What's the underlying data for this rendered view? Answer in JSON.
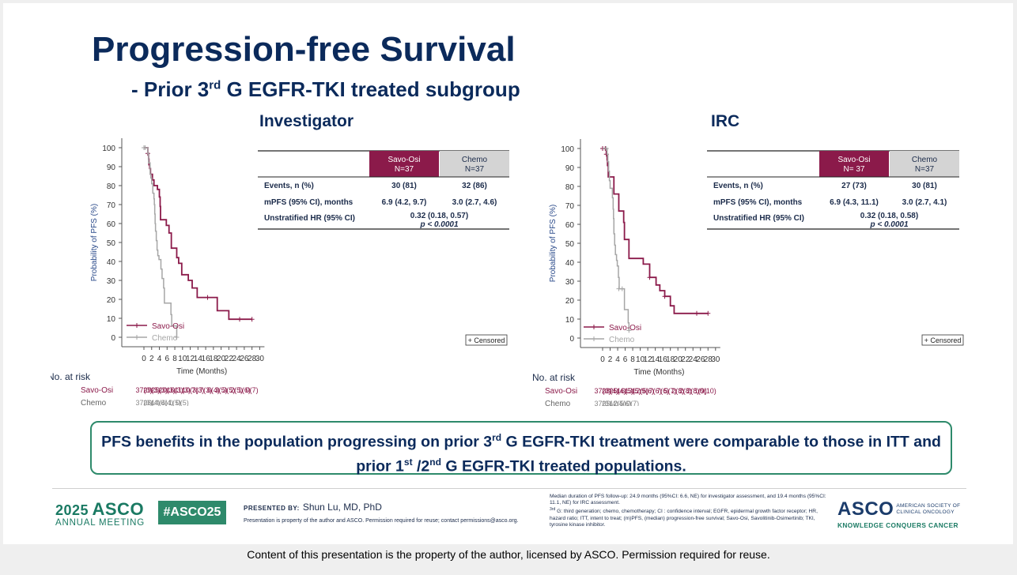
{
  "slide": {
    "title": "Progression-free Survival",
    "subtitle_prefix": "- Prior 3",
    "subtitle_sup": "rd",
    "subtitle_suffix": " G EGFR-TKI treated subgroup",
    "callout_part1": "PFS benefits in the population progressing on prior 3",
    "callout_sup1": "rd",
    "callout_part2": " G EGFR-TKI treatment  were comparable to those in ITT and prior 1",
    "callout_sup2": "st",
    "callout_part3": " /2",
    "callout_sup3": "nd",
    "callout_part4": " G EGFR-TKI treated populations.",
    "outer_caption": "Content of this presentation is the property of the author, licensed by ASCO. Permission required for reuse."
  },
  "footer": {
    "year": "2025",
    "asco": "ASCO",
    "meeting": "ANNUAL MEETING",
    "hashtag": "#ASCO25",
    "presented_by": "PRESENTED BY:",
    "presenter": "Shun Lu, MD, PhD",
    "permission": "Presentation is property of the author and ASCO. Permission required for reuse; contact permissions@asco.org.",
    "footnote_1": "Median duration of PFS follow-up: 24.9 months (95%CI: 6.6, NE) for investigator assessment, and 19.4 months (95%CI: 11.1, NE) for IRC assessment.",
    "footnote_2_sup": "3rd",
    "footnote_2": " G: third generation; chemo, chemotherapy; CI : confidence interval; EGFR, epidermal growth factor receptor; HR, hazard ratio; ITT, intent to treat; (m)PFS, (median) progression-free survival; Savo-Osi, Savolitinib-Osimertinib; TKI, tyrosine kinase inhibitor.",
    "asco_right": "ASCO",
    "society_line1": "AMERICAN SOCIETY OF",
    "society_line2": "CLINICAL ONCOLOGY",
    "tagline": "KNOWLEDGE CONQUERS CANCER"
  },
  "colors": {
    "savo": "#8b1a4a",
    "chemo": "#a6a6a6",
    "navy": "#0b2a5b",
    "green": "#2e8a6b"
  },
  "chart_data": [
    {
      "type": "line",
      "title": "Investigator",
      "xlabel": "Time (Months)",
      "ylabel": "Probability of PFS (%)",
      "xlim": [
        0,
        30
      ],
      "ylim": [
        0,
        100
      ],
      "xticks": [
        "0",
        "2",
        "4",
        "6",
        "8",
        "10",
        "12",
        "14",
        "16",
        "18",
        "20",
        "22",
        "24",
        "26",
        "28",
        "30"
      ],
      "yticks": [
        "0",
        "10",
        "20",
        "30",
        "40",
        "50",
        "60",
        "70",
        "80",
        "90",
        "100"
      ],
      "legend": [
        "Savo-Osi",
        "Chemo"
      ],
      "censored_label": "+ Censored",
      "series": [
        {
          "name": "Savo-Osi",
          "color": "#8b1a4a",
          "x": [
            0,
            1,
            1.2,
            1.3,
            1.5,
            1.7,
            2,
            2.2,
            2.6,
            3.5,
            4,
            4.2,
            4.3,
            5.8,
            6.5,
            7.1,
            8.5,
            9,
            9.8,
            11.5,
            12.5,
            13.8,
            15,
            16.5,
            19,
            22,
            24.8,
            28
          ],
          "y": [
            100,
            97,
            94,
            91,
            89,
            86,
            86,
            83,
            80,
            78,
            74,
            69,
            62,
            59,
            55,
            47,
            42,
            39,
            33,
            30,
            26,
            21,
            21,
            21,
            14,
            9.5,
            9.5,
            9.5
          ],
          "censor_x": [
            1,
            16.5,
            24.8,
            28
          ],
          "censor_y": [
            97,
            21,
            9.5,
            9.5
          ]
        },
        {
          "name": "Chemo",
          "color": "#a6a6a6",
          "x": [
            0,
            0.3,
            1,
            1.2,
            1.6,
            1.8,
            2,
            2.3,
            2.6,
            2.7,
            2.8,
            2.9,
            3,
            3.2,
            3.4,
            3.6,
            3.9,
            4.4,
            4.7,
            5.1,
            5.3,
            7,
            7.2,
            8.5
          ],
          "y": [
            100,
            100,
            97,
            92,
            86,
            84,
            81,
            76,
            73,
            70,
            65,
            60,
            56,
            51,
            46,
            43,
            41,
            36,
            31,
            26,
            18,
            12,
            6,
            0
          ],
          "censor_x": [
            0,
            0.3,
            8.5
          ],
          "censor_y": [
            100,
            100,
            0
          ]
        }
      ],
      "table": {
        "headers": [
          "",
          "Savo-Osi\nN=37",
          "Chemo\nN=37"
        ],
        "rows": [
          [
            "Events, n (%)",
            "30 (81)",
            "32 (86)"
          ],
          [
            "mPFS (95% CI), months",
            "6.9 (4.2, 9.7)",
            "3.0 (2.7, 4.6)"
          ]
        ],
        "hr_label": "Unstratified HR (95% CI)",
        "hr_value": "0.32  (0.18, 0.57)",
        "p_value": "p < 0.0001"
      },
      "at_risk": {
        "label": "No. at risk",
        "savo": [
          "37(0)",
          "29(3)",
          "25(3)",
          "20(3)",
          "16(3)",
          "11(3)",
          "10(3)",
          "7(3)",
          "7(3)",
          "6(4)",
          "3(5)",
          "3(5)",
          "2(5)",
          "1(6)",
          "0(7)"
        ],
        "chemo": [
          "37(0)",
          "26(4)",
          "14(4)",
          "6(4)",
          "1(5)",
          "0(5)"
        ]
      }
    },
    {
      "type": "line",
      "title": "IRC",
      "xlabel": "Time (Months)",
      "ylabel": "Probability of PFS (%)",
      "xlim": [
        0,
        30
      ],
      "ylim": [
        0,
        100
      ],
      "xticks": [
        "0",
        "2",
        "4",
        "6",
        "8",
        "10",
        "12",
        "14",
        "16",
        "18",
        "20",
        "22",
        "24",
        "26",
        "28",
        "30"
      ],
      "yticks": [
        "0",
        "10",
        "20",
        "30",
        "40",
        "50",
        "60",
        "70",
        "80",
        "90",
        "100"
      ],
      "legend": [
        "Savo-Osi",
        "Chemo"
      ],
      "censored_label": "+ Censored",
      "series": [
        {
          "name": "Savo-Osi",
          "color": "#8b1a4a",
          "x": [
            0,
            0.7,
            1,
            1.2,
            1.3,
            1.5,
            2.7,
            3,
            4.3,
            5.6,
            5.8,
            7,
            10,
            10.8,
            12.5,
            13.8,
            14.2,
            15.2,
            16.5,
            18,
            19,
            25,
            28
          ],
          "y": [
            100,
            100,
            97,
            94,
            91,
            85,
            85,
            76,
            67,
            61,
            52,
            42,
            42,
            39,
            32,
            32,
            28,
            25,
            22,
            17,
            13,
            13,
            13
          ],
          "censor_x": [
            0,
            0.7,
            1,
            12.5,
            16.5,
            25,
            28
          ],
          "censor_y": [
            100,
            100,
            97,
            32,
            22,
            13,
            13
          ]
        },
        {
          "name": "Chemo",
          "color": "#a6a6a6",
          "x": [
            0,
            1,
            1.2,
            1.4,
            1.6,
            1.8,
            2,
            2.6,
            2.8,
            2.9,
            3,
            3.2,
            3.4,
            3.7,
            3.9,
            4.2,
            4.4,
            5.6,
            5.8,
            6.8,
            7
          ],
          "y": [
            100,
            100,
            97,
            93,
            88,
            83,
            79,
            74,
            68,
            63,
            55,
            49,
            44,
            41,
            38,
            32,
            26,
            26,
            15,
            8,
            4
          ],
          "censor_x": [
            1,
            4.3,
            5.2,
            7
          ],
          "censor_y": [
            100,
            26,
            26,
            4
          ]
        }
      ],
      "table": {
        "headers": [
          "",
          "Savo-Osi\nN= 37",
          "Chemo\nN=37"
        ],
        "rows": [
          [
            "Events, n (%)",
            "27 (73)",
            "30 (81)"
          ],
          [
            "mPFS (95% CI), months",
            "6.9 (4.3, 11.1)",
            "3.0 (2.7, 4.1)"
          ]
        ],
        "hr_label": "Unstratified HR (95% CI)",
        "hr_value": "0.32  (0.18, 0.58)",
        "p_value": "p < 0.0001"
      },
      "at_risk": {
        "label": "No. at risk",
        "savo": [
          "37(0)",
          "28(4)",
          "25(4)",
          "16(5)",
          "13(5)",
          "12(5)",
          "9(6)",
          "7(6)",
          "7(6)",
          "5(7)",
          "2(8)",
          "2(8)",
          "2(8)",
          "1(9)",
          "0(10)"
        ],
        "chemo": [
          "37(0)",
          "25(4)",
          "12(5)",
          "4(6)",
          "0(7)"
        ]
      }
    }
  ]
}
